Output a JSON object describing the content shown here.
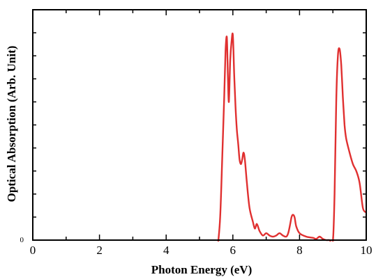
{
  "chart_data": {
    "type": "line",
    "title": "",
    "xlabel": "Photon Energy (eV)",
    "ylabel": "Optical Absorption (Arb. Unit)",
    "xlim": [
      0,
      10
    ],
    "ylim": [
      0,
      1
    ],
    "x_ticks": [
      0,
      2,
      4,
      6,
      8,
      10
    ],
    "y_tick_labels": [
      "0"
    ],
    "grid": false,
    "legend": "none",
    "series": [
      {
        "color": "#e03030",
        "x": [
          5.56,
          5.62,
          5.68,
          5.74,
          5.78,
          5.82,
          5.85,
          5.88,
          5.92,
          5.96,
          6.0,
          6.04,
          6.08,
          6.12,
          6.16,
          6.2,
          6.24,
          6.28,
          6.32,
          6.36,
          6.42,
          6.5,
          6.6,
          6.66,
          6.72,
          6.8,
          6.9,
          7.0,
          7.1,
          7.2,
          7.3,
          7.4,
          7.5,
          7.6,
          7.66,
          7.72,
          7.76,
          7.8,
          7.85,
          7.9,
          8.0,
          8.2,
          8.4,
          8.5,
          8.6,
          8.7,
          8.8,
          8.9,
          9.0,
          9.05,
          9.1,
          9.15,
          9.2,
          9.25,
          9.3,
          9.35,
          9.4,
          9.5,
          9.6,
          9.7,
          9.8,
          9.9,
          10.0
        ],
        "y": [
          -0.01,
          0.1,
          0.35,
          0.62,
          0.82,
          0.88,
          0.72,
          0.6,
          0.78,
          0.86,
          0.89,
          0.72,
          0.58,
          0.48,
          0.42,
          0.35,
          0.33,
          0.35,
          0.38,
          0.35,
          0.25,
          0.14,
          0.08,
          0.05,
          0.07,
          0.04,
          0.02,
          0.03,
          0.02,
          0.015,
          0.02,
          0.03,
          0.02,
          0.015,
          0.03,
          0.07,
          0.1,
          0.11,
          0.1,
          0.06,
          0.03,
          0.015,
          0.01,
          0.005,
          0.015,
          0.005,
          0.0,
          0.0,
          -0.005,
          0.2,
          0.6,
          0.8,
          0.83,
          0.76,
          0.62,
          0.5,
          0.44,
          0.38,
          0.33,
          0.3,
          0.25,
          0.14,
          0.12
        ]
      }
    ]
  }
}
